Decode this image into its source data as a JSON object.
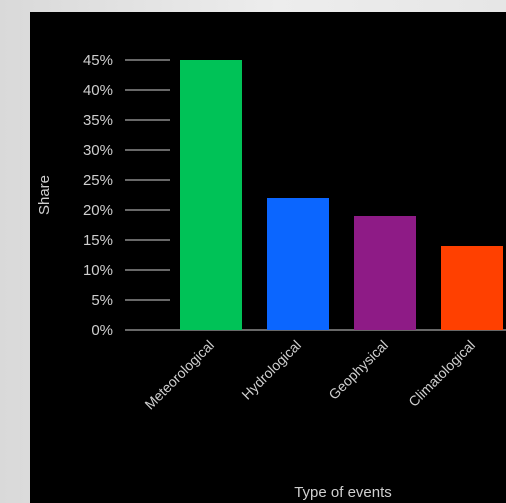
{
  "chart_data": {
    "type": "bar",
    "xlabel": "Type of events",
    "ylabel": "Share",
    "ylim": [
      0,
      45
    ],
    "yticks": [
      0,
      5,
      10,
      15,
      20,
      25,
      30,
      35,
      40,
      45
    ],
    "ytick_labels": [
      "0%",
      "5%",
      "10%",
      "15%",
      "20%",
      "25%",
      "30%",
      "35%",
      "40%",
      "45%"
    ],
    "categories": [
      "Meteorological",
      "Hydrological",
      "Geophysical",
      "Climatological"
    ],
    "values": [
      45,
      22,
      19,
      14
    ],
    "colors": [
      "#00c257",
      "#0b66ff",
      "#8e1b86",
      "#ff4000"
    ],
    "grid": false
  }
}
